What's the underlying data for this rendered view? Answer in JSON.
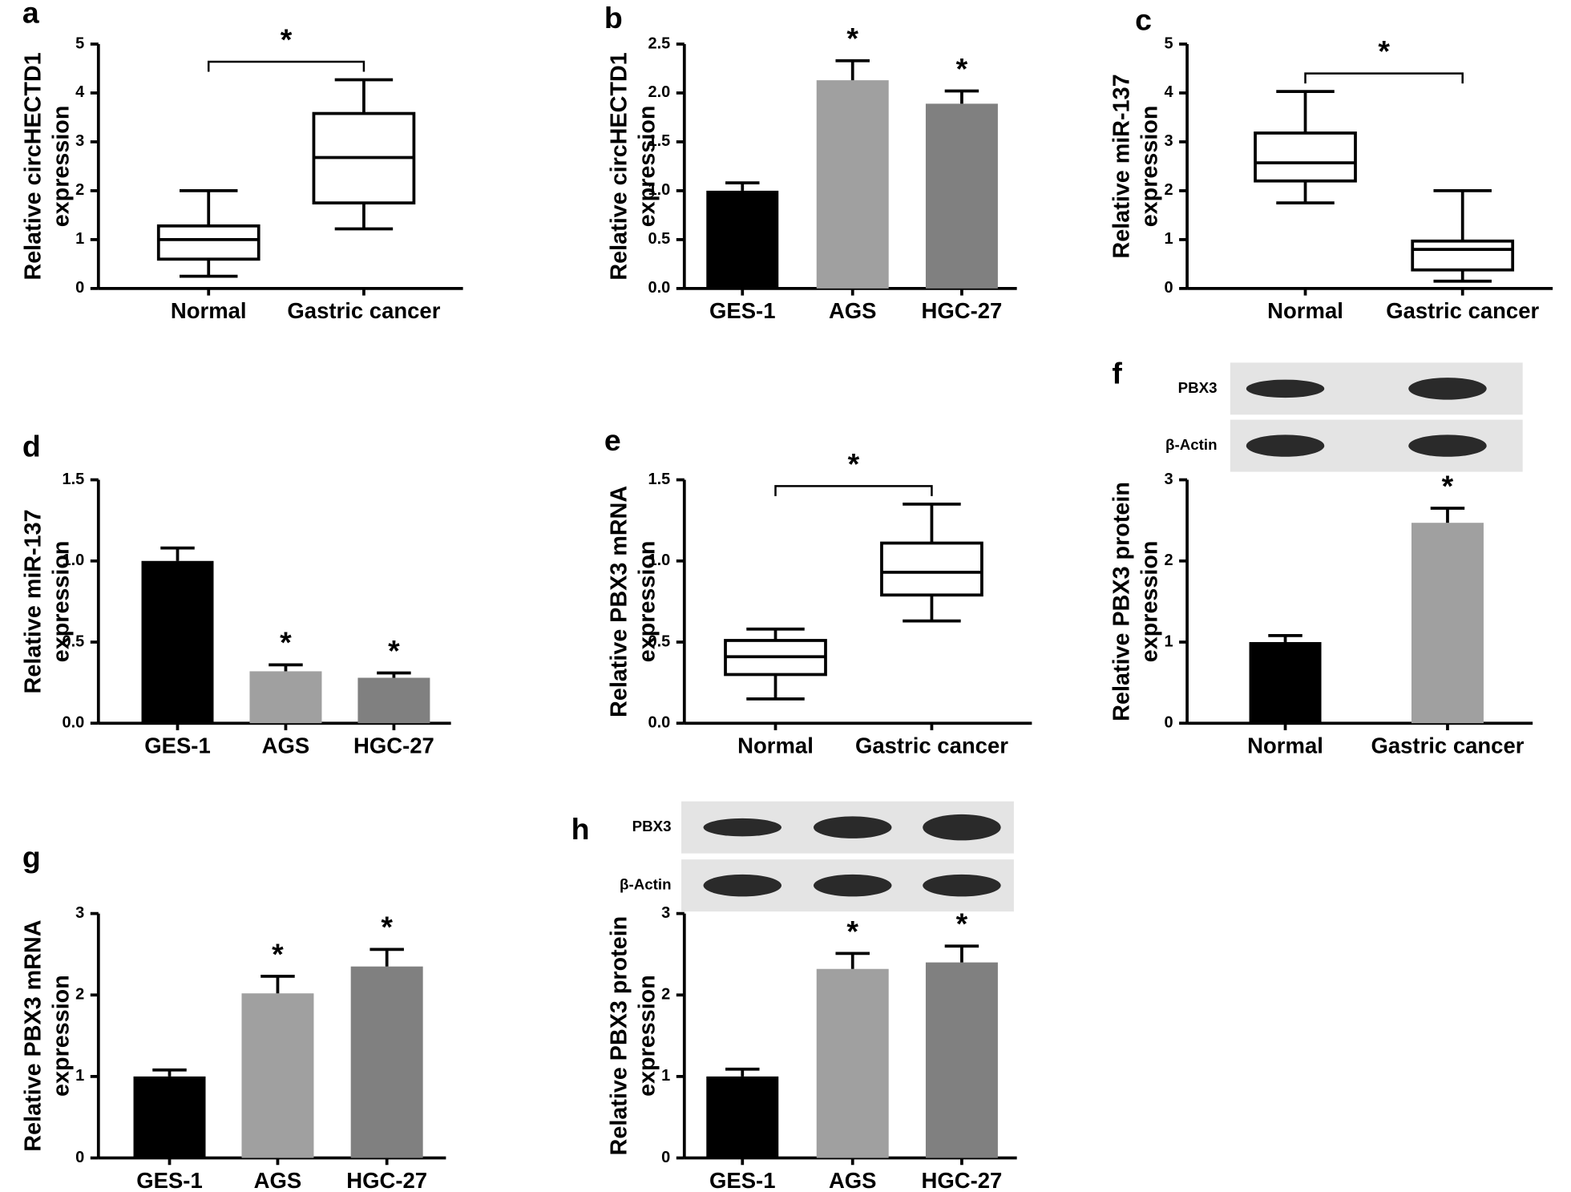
{
  "chart_data": [
    {
      "type": "box",
      "panel": "a",
      "ylabel": [
        "Relative circHECTD1",
        "expression"
      ],
      "categories": [
        "Normal",
        "Gastric cancer"
      ],
      "boxes": [
        {
          "min": 0.25,
          "q1": 0.6,
          "median": 1.0,
          "q3": 1.28,
          "max": 2.0
        },
        {
          "min": 1.22,
          "q1": 1.75,
          "median": 2.68,
          "q3": 3.58,
          "max": 4.27
        }
      ],
      "significance": "*",
      "ylim": [
        0,
        5
      ],
      "yticks": [
        0,
        1,
        2,
        3,
        4,
        5
      ]
    },
    {
      "type": "bar",
      "panel": "b",
      "ylabel": [
        "Relative circHECTD1",
        "expression"
      ],
      "categories": [
        "GES-1",
        "AGS",
        "HGC-27"
      ],
      "values": [
        1.0,
        2.13,
        1.89
      ],
      "errors": [
        0.08,
        0.2,
        0.13
      ],
      "colors": [
        "#000000",
        "#a0a0a0",
        "#808080"
      ],
      "significance": [
        null,
        "*",
        "*"
      ],
      "ylim": [
        0,
        2.5
      ],
      "yticks": [
        {
          "value": 0,
          "label": "0.0"
        },
        {
          "value": 0.5,
          "label": "0.5"
        },
        {
          "value": 1,
          "label": "1.0"
        },
        {
          "value": 1.5,
          "label": "1.5"
        },
        {
          "value": 2,
          "label": "2.0"
        },
        {
          "value": 2.5,
          "label": "2.5"
        }
      ]
    },
    {
      "type": "box",
      "panel": "c",
      "ylabel": [
        "Relative miR-137",
        "expression"
      ],
      "categories": [
        "Normal",
        "Gastric cancer"
      ],
      "boxes": [
        {
          "min": 1.75,
          "q1": 2.2,
          "median": 2.57,
          "q3": 3.18,
          "max": 4.03
        },
        {
          "min": 0.15,
          "q1": 0.38,
          "median": 0.8,
          "q3": 0.97,
          "max": 2.0
        }
      ],
      "significance": "*",
      "ylim": [
        0,
        5
      ],
      "yticks": [
        0,
        1,
        2,
        3,
        4,
        5
      ]
    },
    {
      "type": "bar",
      "panel": "d",
      "ylabel": [
        "Relative miR-137",
        "expression"
      ],
      "categories": [
        "GES-1",
        "AGS",
        "HGC-27"
      ],
      "values": [
        1.0,
        0.32,
        0.28
      ],
      "errors": [
        0.08,
        0.04,
        0.03
      ],
      "colors": [
        "#000000",
        "#a0a0a0",
        "#808080"
      ],
      "significance": [
        null,
        "*",
        "*"
      ],
      "ylim": [
        0,
        1.5
      ],
      "yticks": [
        {
          "value": 0,
          "label": "0.0"
        },
        {
          "value": 0.5,
          "label": "0.5"
        },
        {
          "value": 1,
          "label": "1.0"
        },
        {
          "value": 1.5,
          "label": "1.5"
        }
      ]
    },
    {
      "type": "box",
      "panel": "e",
      "ylabel": [
        "Relative PBX3 mRNA",
        "expression"
      ],
      "categories": [
        "Normal",
        "Gastric cancer"
      ],
      "boxes": [
        {
          "min": 0.15,
          "q1": 0.3,
          "median": 0.41,
          "q3": 0.51,
          "max": 0.58
        },
        {
          "min": 0.63,
          "q1": 0.79,
          "median": 0.93,
          "q3": 1.11,
          "max": 1.35
        }
      ],
      "significance": "*",
      "ylim": [
        0,
        1.5
      ],
      "yticks": [
        {
          "value": 0,
          "label": "0.0"
        },
        {
          "value": 0.5,
          "label": "0.5"
        },
        {
          "value": 1,
          "label": "1.0"
        },
        {
          "value": 1.5,
          "label": "1.5"
        }
      ]
    },
    {
      "type": "bar",
      "panel": "f",
      "ylabel": [
        "Relative PBX3 protein",
        "expression"
      ],
      "categories": [
        "Normal",
        "Gastric cancer"
      ],
      "values": [
        1.0,
        2.47
      ],
      "errors": [
        0.08,
        0.18
      ],
      "colors": [
        "#000000",
        "#a0a0a0"
      ],
      "significance": [
        null,
        "*"
      ],
      "ylim": [
        0,
        3
      ],
      "yticks": [
        0,
        1,
        2,
        3
      ],
      "blot_labels": [
        "PBX3",
        "β-Actin"
      ]
    },
    {
      "type": "bar",
      "panel": "g",
      "ylabel": [
        "Relative PBX3 mRNA",
        "expression"
      ],
      "categories": [
        "GES-1",
        "AGS",
        "HGC-27"
      ],
      "values": [
        1.0,
        2.02,
        2.35
      ],
      "errors": [
        0.08,
        0.21,
        0.21
      ],
      "colors": [
        "#000000",
        "#a0a0a0",
        "#808080"
      ],
      "significance": [
        null,
        "*",
        "*"
      ],
      "ylim": [
        0,
        3
      ],
      "yticks": [
        0,
        1,
        2,
        3
      ]
    },
    {
      "type": "bar",
      "panel": "h",
      "ylabel": [
        "Relative PBX3 protein",
        "expression"
      ],
      "categories": [
        "GES-1",
        "AGS",
        "HGC-27"
      ],
      "values": [
        1.0,
        2.32,
        2.4
      ],
      "errors": [
        0.09,
        0.19,
        0.2
      ],
      "colors": [
        "#000000",
        "#a0a0a0",
        "#808080"
      ],
      "significance": [
        null,
        "*",
        "*"
      ],
      "ylim": [
        0,
        3
      ],
      "yticks": [
        0,
        1,
        2,
        3
      ],
      "blot_labels": [
        "PBX3",
        "β-Actin"
      ]
    }
  ]
}
